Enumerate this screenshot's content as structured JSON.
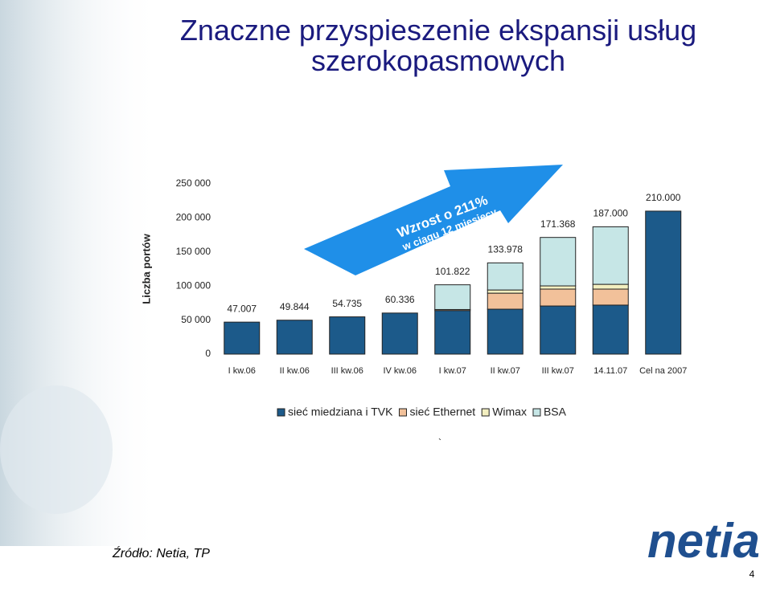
{
  "title": "Znaczne przyspieszenie ekspansji usług szerokopasmowych",
  "chart_data": {
    "type": "stacked-bar",
    "y_label": "Liczba portów",
    "categories": [
      "I kw.06",
      "II kw.06",
      "III kw.06",
      "IV kw.06",
      "I kw.07",
      "II kw.07",
      "III kw.07",
      "14.11.07",
      "Cel na 2007"
    ],
    "series": [
      {
        "name": "sieć miedziana i TVK",
        "color": "#1c5a8a",
        "values": [
          47007,
          49844,
          54735,
          60336,
          64000,
          66000,
          70700,
          72000,
          210000
        ]
      },
      {
        "name": "sieć Ethernet",
        "color": "#f2c19a",
        "values": [
          0,
          0,
          0,
          0,
          1500,
          23500,
          24800,
          23500,
          0
        ]
      },
      {
        "name": "Wimax",
        "color": "#f3efc0",
        "values": [
          0,
          0,
          0,
          0,
          0,
          4700,
          4700,
          7000,
          0
        ]
      },
      {
        "name": "BSA",
        "color": "#c6e6e6",
        "values": [
          0,
          0,
          0,
          0,
          36322,
          39778,
          71168,
          84500,
          0
        ]
      }
    ],
    "totals": {
      "values": [
        47007,
        49844,
        54735,
        60336,
        101822,
        133978,
        171368,
        187000,
        210000
      ],
      "value_labels": [
        "47.007",
        "49.844",
        "54.735",
        "60.336",
        "101.822",
        "133.978",
        "171.368",
        "187.000",
        "210.000"
      ]
    },
    "ylim": [
      0,
      250000
    ],
    "yticks": [
      0,
      {
        "value": 50000,
        "label": "50 000"
      },
      {
        "value": 100000,
        "label": "100 000"
      },
      {
        "value": 150000,
        "label": "150 000"
      },
      {
        "value": 200000,
        "label": "200 000"
      },
      {
        "value": 250000,
        "label": "250 000"
      }
    ],
    "grid": false,
    "annotation": {
      "line1": "Wzrost o 211%",
      "line2": "w ciągu 12 miesięcy"
    }
  },
  "stray_mark": "`",
  "source": "Źródło: Netia, TP",
  "logo": "netia",
  "page_number": "4"
}
